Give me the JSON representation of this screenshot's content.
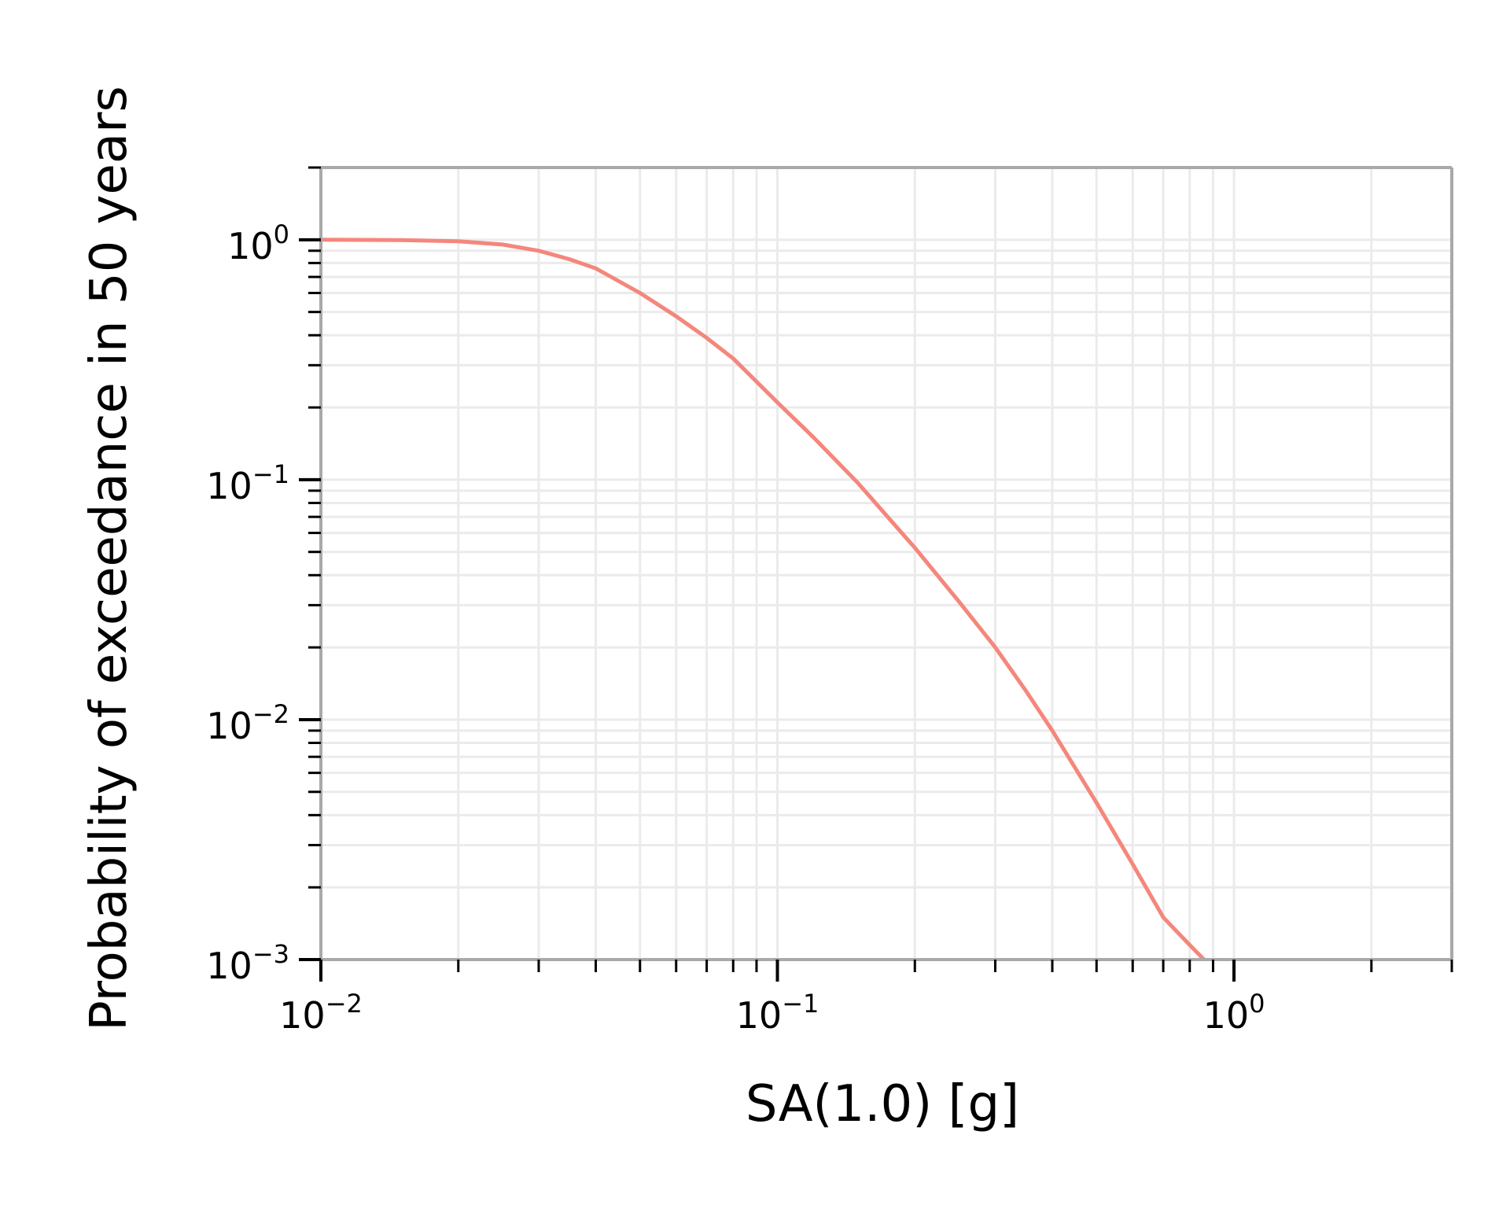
{
  "chart_data": {
    "type": "line",
    "xlabel": "SA(1.0)  [g]",
    "ylabel": "Probability of exceedance in 50 years",
    "x_scale": "log",
    "y_scale": "log",
    "xlim": [
      0.01,
      3.0
    ],
    "ylim": [
      0.001,
      2.0
    ],
    "grid": "both (major and minor), light gray",
    "x_ticks": [
      {
        "base": "10",
        "exp": "−2",
        "value": 0.01
      },
      {
        "base": "10",
        "exp": "−1",
        "value": 0.1
      },
      {
        "base": "10",
        "exp": "0",
        "value": 1
      }
    ],
    "y_ticks": [
      {
        "base": "10",
        "exp": "0",
        "value": 1
      },
      {
        "base": "10",
        "exp": "−1",
        "value": 0.1
      },
      {
        "base": "10",
        "exp": "−2",
        "value": 0.01
      },
      {
        "base": "10",
        "exp": "−3",
        "value": 0.001
      }
    ],
    "series": [
      {
        "color": "#f4877c",
        "x": [
          0.01,
          0.015,
          0.02,
          0.025,
          0.03,
          0.035,
          0.04,
          0.05,
          0.06,
          0.07,
          0.08,
          0.1,
          0.12,
          0.15,
          0.2,
          0.25,
          0.3,
          0.35,
          0.4,
          0.5,
          0.6,
          0.7,
          0.8,
          0.86
        ],
        "y": [
          1.0,
          0.997,
          0.985,
          0.955,
          0.9,
          0.83,
          0.76,
          0.6,
          0.48,
          0.39,
          0.32,
          0.21,
          0.15,
          0.097,
          0.052,
          0.031,
          0.02,
          0.0132,
          0.009,
          0.0045,
          0.0025,
          0.0015,
          0.00115,
          0.001
        ]
      }
    ]
  },
  "colors": {
    "line": "#f4877c",
    "spine": "#a9a9a9",
    "grid": "#ebebeb",
    "tick": "#000000"
  }
}
